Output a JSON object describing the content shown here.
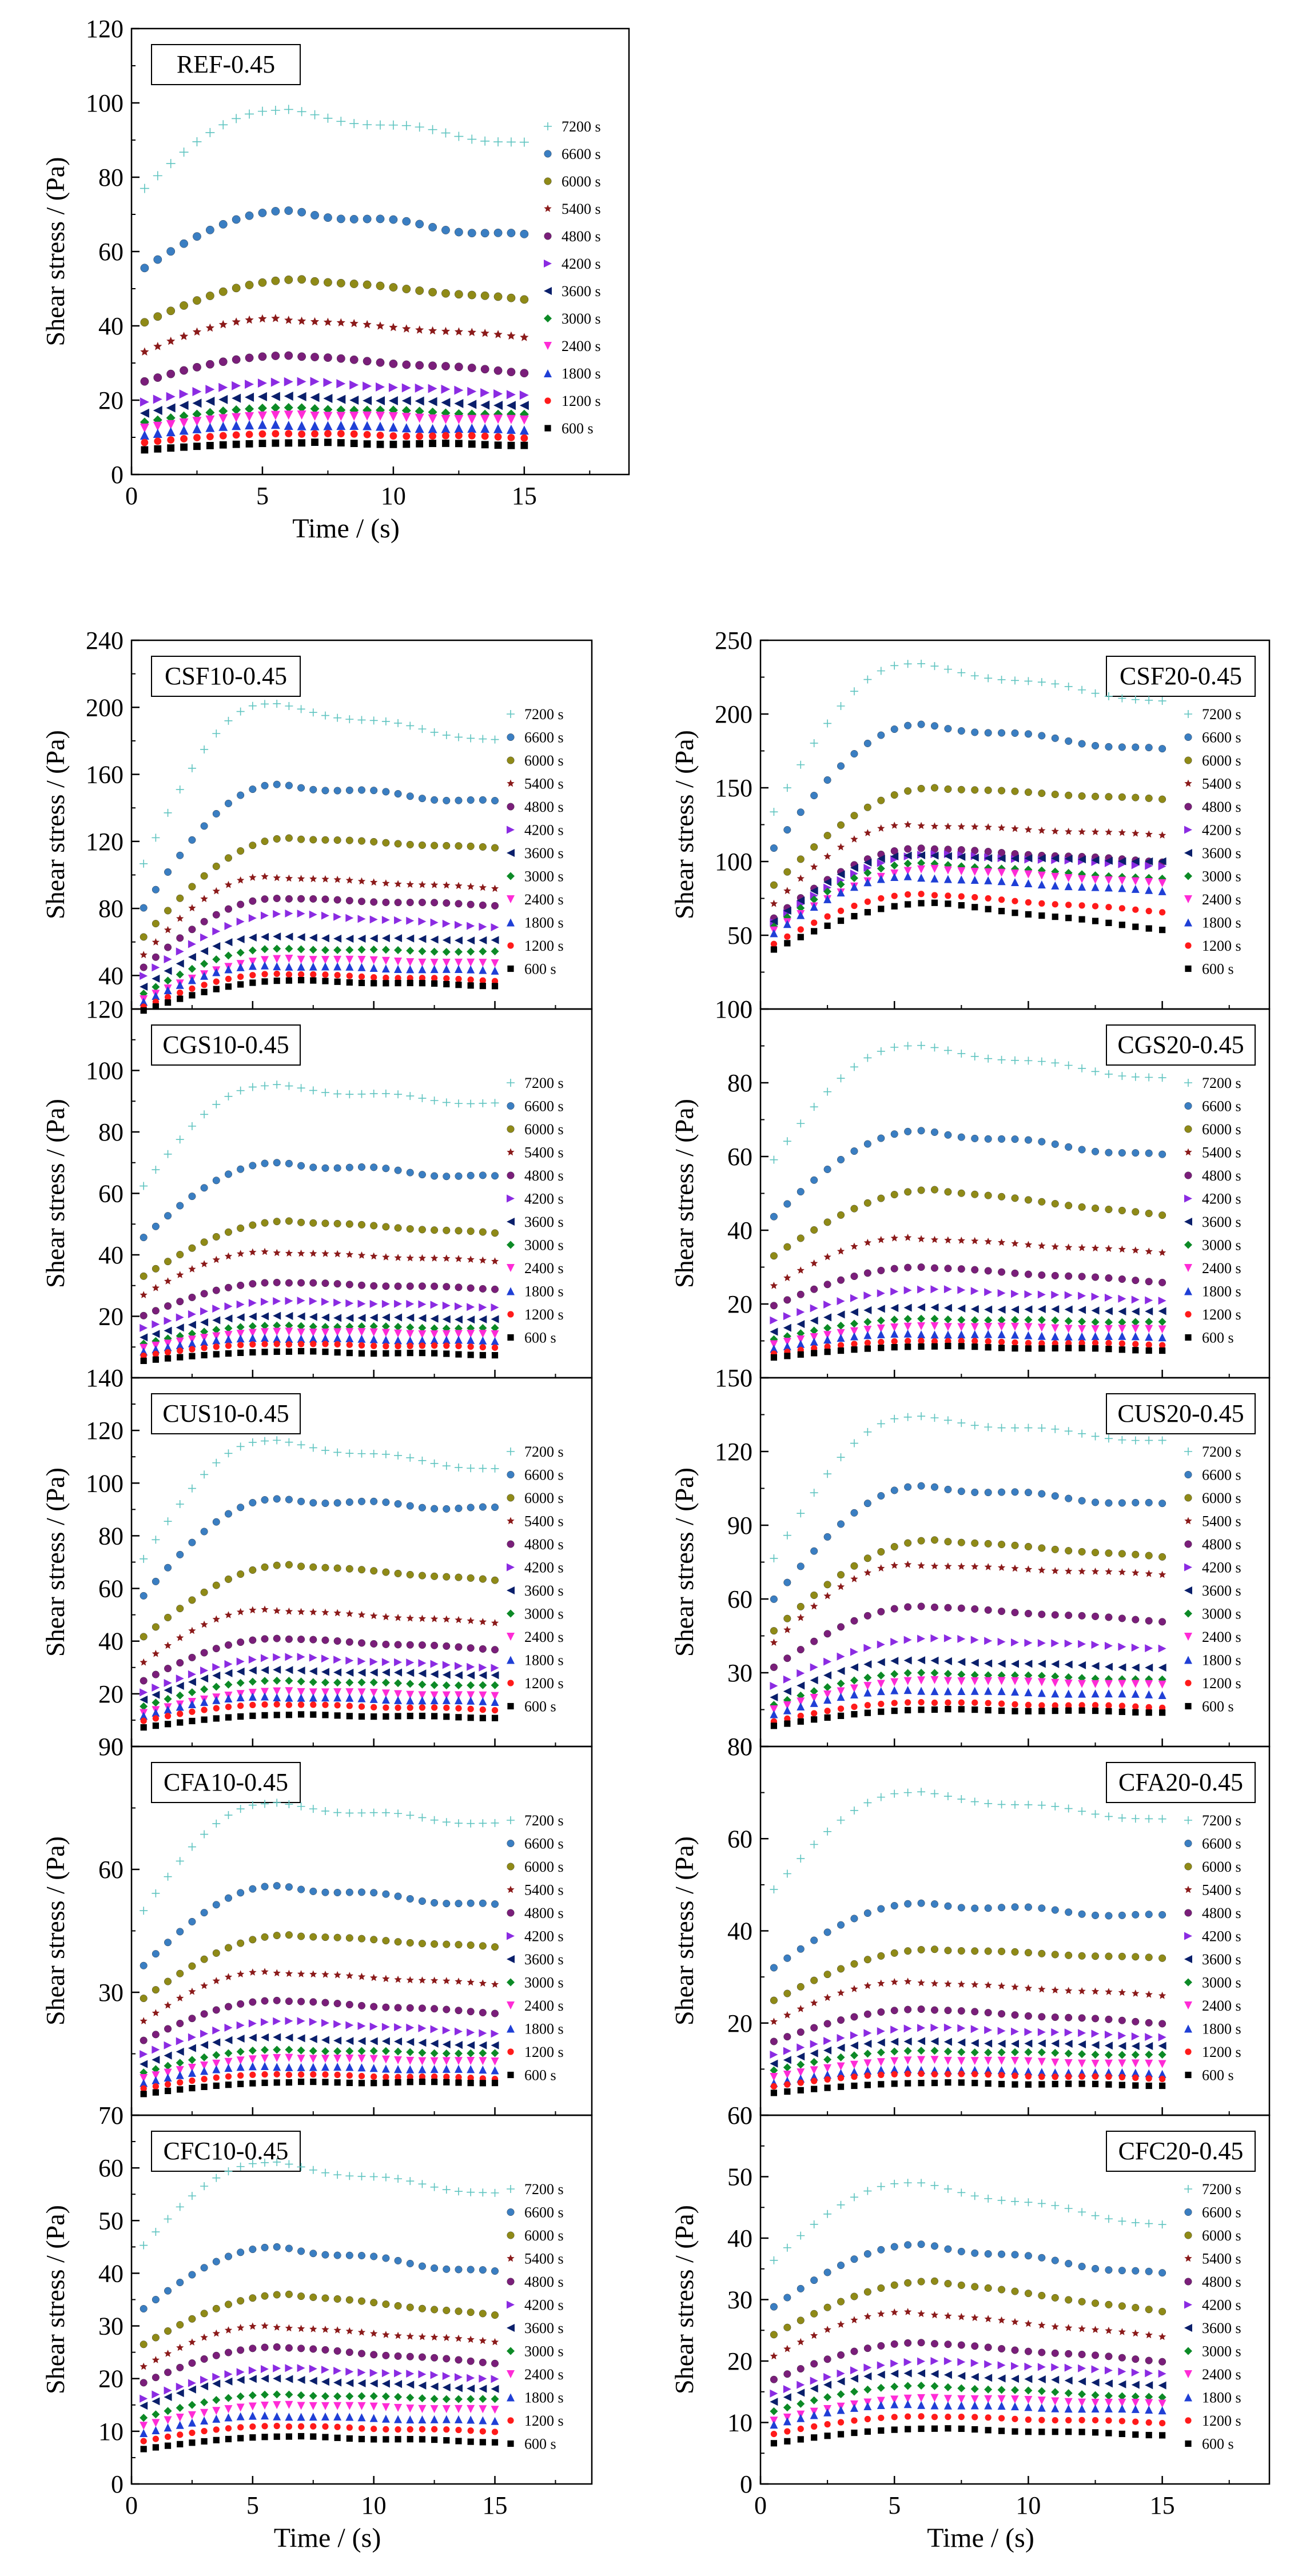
{
  "figure": {
    "time_labels": [
      "7200 s",
      "6600 s",
      "6000 s",
      "5400 s",
      "4800 s",
      "4200 s",
      "3600 s",
      "3000 s",
      "2400 s",
      "1800 s",
      "1200 s",
      "600 s"
    ],
    "series_styles": [
      {
        "time": "7200 s",
        "marker": "plus",
        "color": "#5fc4c0"
      },
      {
        "time": "6600 s",
        "marker": "ball",
        "color": "#3a7ec2"
      },
      {
        "time": "6000 s",
        "marker": "ball",
        "color": "#8f8a17"
      },
      {
        "time": "5400 s",
        "marker": "star",
        "color": "#8b1a1a"
      },
      {
        "time": "4800 s",
        "marker": "ball",
        "color": "#7a1e7a"
      },
      {
        "time": "4200 s",
        "marker": "tri-right",
        "color": "#8b2be2"
      },
      {
        "time": "3600 s",
        "marker": "tri-left",
        "color": "#0a1f6b"
      },
      {
        "time": "3000 s",
        "marker": "diamond",
        "color": "#0c8a26"
      },
      {
        "time": "2400 s",
        "marker": "tri-down",
        "color": "#ff2bd6"
      },
      {
        "time": "1800 s",
        "marker": "tri-up",
        "color": "#1f3fd6"
      },
      {
        "time": "1200 s",
        "marker": "circle",
        "color": "#ff1a1a"
      },
      {
        "time": "600 s",
        "marker": "square",
        "color": "#000000"
      }
    ]
  },
  "chart_data": [
    {
      "id": "REF-0.45",
      "type": "scatter",
      "title": "REF-0.45",
      "xlabel": "Time / (s)",
      "ylabel": "Shear stress / (Pa)",
      "xlim": [
        0,
        19
      ],
      "ylim": [
        0,
        120
      ],
      "xticks": [
        0,
        5,
        10,
        15
      ],
      "yticks": [
        0,
        20,
        40,
        60,
        80,
        100,
        120
      ],
      "peaks": [
        98,
        71,
        52.5,
        42,
        32,
        25,
        21,
        18,
        16,
        13.5,
        11,
        8.5
      ],
      "finals": [
        89,
        64,
        47,
        37,
        27.5,
        21.5,
        18.5,
        16,
        14.5,
        12,
        10,
        8
      ],
      "initial_frac": 0.75
    },
    {
      "id": "CSF10-0.45",
      "type": "scatter",
      "title": "CSF10-0.45",
      "xlabel": "",
      "ylabel": "Shear stress / (Pa)",
      "xlim": [
        0,
        19
      ],
      "ylim": [
        20,
        240
      ],
      "xticks": [
        0,
        5,
        10,
        15
      ],
      "yticks": [
        40,
        80,
        120,
        160,
        200,
        240
      ],
      "peaks": [
        202,
        154,
        122,
        99,
        86,
        77,
        63,
        56,
        50,
        46,
        41,
        37
      ],
      "finals": [
        180,
        143,
        116,
        92,
        82,
        69,
        61,
        54,
        47,
        43,
        37,
        34
      ],
      "initial_frac": 0.45
    },
    {
      "id": "CSF20-0.45",
      "type": "scatter",
      "title": "CSF20-0.45",
      "xlabel": "",
      "ylabel": "Shear stress / (Pa)",
      "xlim": [
        0,
        19
      ],
      "ylim": [
        0,
        250
      ],
      "xticks": [
        0,
        5,
        10,
        15
      ],
      "yticks": [
        0,
        50,
        100,
        150,
        200,
        250
      ],
      "peaks": [
        234,
        193,
        150,
        125,
        109,
        105,
        104,
        99,
        95,
        90,
        78,
        72
      ],
      "finals": [
        208,
        175,
        142,
        118,
        100,
        97,
        100,
        88,
        85,
        80,
        66,
        54
      ],
      "initial_frac": 0.5
    },
    {
      "id": "CGS10-0.45",
      "type": "scatter",
      "title": "CGS10-0.45",
      "xlabel": "",
      "ylabel": "Shear stress / (Pa)",
      "xlim": [
        0,
        19
      ],
      "ylim": [
        0,
        120
      ],
      "xticks": [
        0,
        5,
        10,
        15
      ],
      "yticks": [
        0,
        20,
        40,
        60,
        80,
        100,
        120
      ],
      "peaks": [
        95,
        70,
        51,
        41,
        31,
        25,
        20,
        17,
        15,
        13,
        11,
        8.5
      ],
      "finals": [
        89,
        65,
        47,
        38,
        29,
        23,
        19,
        16,
        14,
        12,
        10,
        7.5
      ],
      "initial_frac": 0.6
    },
    {
      "id": "CGS20-0.45",
      "type": "scatter",
      "title": "CGS20-0.45",
      "xlabel": "",
      "ylabel": "Shear stress / (Pa)",
      "xlim": [
        0,
        19
      ],
      "ylim": [
        0,
        100
      ],
      "xticks": [
        0,
        5,
        10,
        15
      ],
      "yticks": [
        0,
        20,
        40,
        60,
        80,
        100
      ],
      "peaks": [
        90,
        67,
        51,
        38,
        30,
        24,
        19,
        16,
        14,
        12,
        10,
        8.5
      ],
      "finals": [
        81,
        60,
        44,
        34,
        26,
        21,
        18,
        15,
        13,
        11,
        9,
        7.5
      ],
      "initial_frac": 0.6
    },
    {
      "id": "CUS10-0.45",
      "type": "scatter",
      "title": "CUS10-0.45",
      "xlabel": "",
      "ylabel": "Shear stress / (Pa)",
      "xlim": [
        0,
        19
      ],
      "ylim": [
        0,
        140
      ],
      "xticks": [
        0,
        5,
        10,
        15
      ],
      "yticks": [
        0,
        20,
        40,
        60,
        80,
        100,
        120,
        140
      ],
      "peaks": [
        116,
        94,
        69,
        52,
        41,
        34,
        29,
        25,
        21,
        19,
        16,
        12
      ],
      "finals": [
        105,
        90,
        63,
        47,
        37,
        30,
        27,
        23,
        19,
        17,
        14,
        11
      ],
      "initial_frac": 0.55
    },
    {
      "id": "CUS20-0.45",
      "type": "scatter",
      "title": "CUS20-0.45",
      "xlabel": "",
      "ylabel": "Shear stress / (Pa)",
      "xlim": [
        0,
        19
      ],
      "ylim": [
        0,
        150
      ],
      "xticks": [
        0,
        5,
        10,
        15
      ],
      "yticks": [
        0,
        30,
        60,
        90,
        120,
        150
      ],
      "peaks": [
        134,
        106,
        84,
        74,
        57,
        44,
        35,
        30,
        27,
        23,
        18,
        15
      ],
      "finals": [
        124,
        98,
        77,
        70,
        51,
        40,
        32,
        27,
        25,
        21,
        16,
        14
      ],
      "initial_frac": 0.5
    },
    {
      "id": "CFA10-0.45",
      "type": "scatter",
      "title": "CFA10-0.45",
      "xlabel": "",
      "ylabel": "Shear stress / (Pa)",
      "xlim": [
        0,
        19
      ],
      "ylim": [
        0,
        90
      ],
      "xticks": [
        0,
        5,
        10,
        15
      ],
      "yticks": [
        0,
        30,
        60,
        90
      ],
      "peaks": [
        76,
        56,
        44,
        35,
        28,
        23,
        19,
        16,
        14,
        12,
        10,
        8
      ],
      "finals": [
        71,
        51,
        41,
        32,
        25,
        20,
        17,
        15,
        13,
        11,
        9,
        8
      ],
      "initial_frac": 0.6
    },
    {
      "id": "CFA20-0.45",
      "type": "scatter",
      "title": "CFA20-0.45",
      "xlabel": "",
      "ylabel": "Shear stress / (Pa)",
      "xlim": [
        0,
        19
      ],
      "ylim": [
        0,
        80
      ],
      "xticks": [
        0,
        5,
        10,
        15
      ],
      "yticks": [
        0,
        20,
        40,
        60,
        80
      ],
      "peaks": [
        70,
        46,
        36,
        29,
        23,
        19,
        16,
        14,
        12,
        10,
        9,
        7
      ],
      "finals": [
        64,
        43,
        34,
        26,
        20,
        17,
        15,
        13,
        11,
        9,
        8,
        6.5
      ],
      "initial_frac": 0.65
    },
    {
      "id": "CFC10-0.45",
      "type": "scatter",
      "title": "CFC10-0.45",
      "xlabel": "Time / (s)",
      "ylabel": "Shear stress / (Pa)",
      "xlim": [
        0,
        19
      ],
      "ylim": [
        0,
        70
      ],
      "xticks": [
        0,
        5,
        10,
        15
      ],
      "yticks": [
        0,
        10,
        20,
        30,
        40,
        50,
        60,
        70
      ],
      "peaks": [
        61,
        45,
        36,
        30,
        26,
        22,
        20,
        17,
        15,
        13,
        11,
        9
      ],
      "finals": [
        55,
        40,
        32,
        27,
        23,
        20,
        18,
        16,
        14,
        12,
        10,
        8
      ],
      "initial_frac": 0.7
    },
    {
      "id": "CFC20-0.45",
      "type": "scatter",
      "title": "CFC20-0.45",
      "xlabel": "Time / (s)",
      "ylabel": "Shear stress / (Pa)",
      "xlim": [
        0,
        19
      ],
      "ylim": [
        0,
        60
      ],
      "xticks": [
        0,
        5,
        10,
        15
      ],
      "yticks": [
        0,
        10,
        20,
        30,
        40,
        50,
        60
      ],
      "peaks": [
        49,
        39,
        33,
        28,
        23,
        20,
        18,
        16,
        14,
        13,
        11,
        9
      ],
      "finals": [
        42,
        34,
        28,
        24,
        20,
        18,
        16,
        14,
        13,
        12,
        10,
        8
      ],
      "initial_frac": 0.7
    }
  ]
}
